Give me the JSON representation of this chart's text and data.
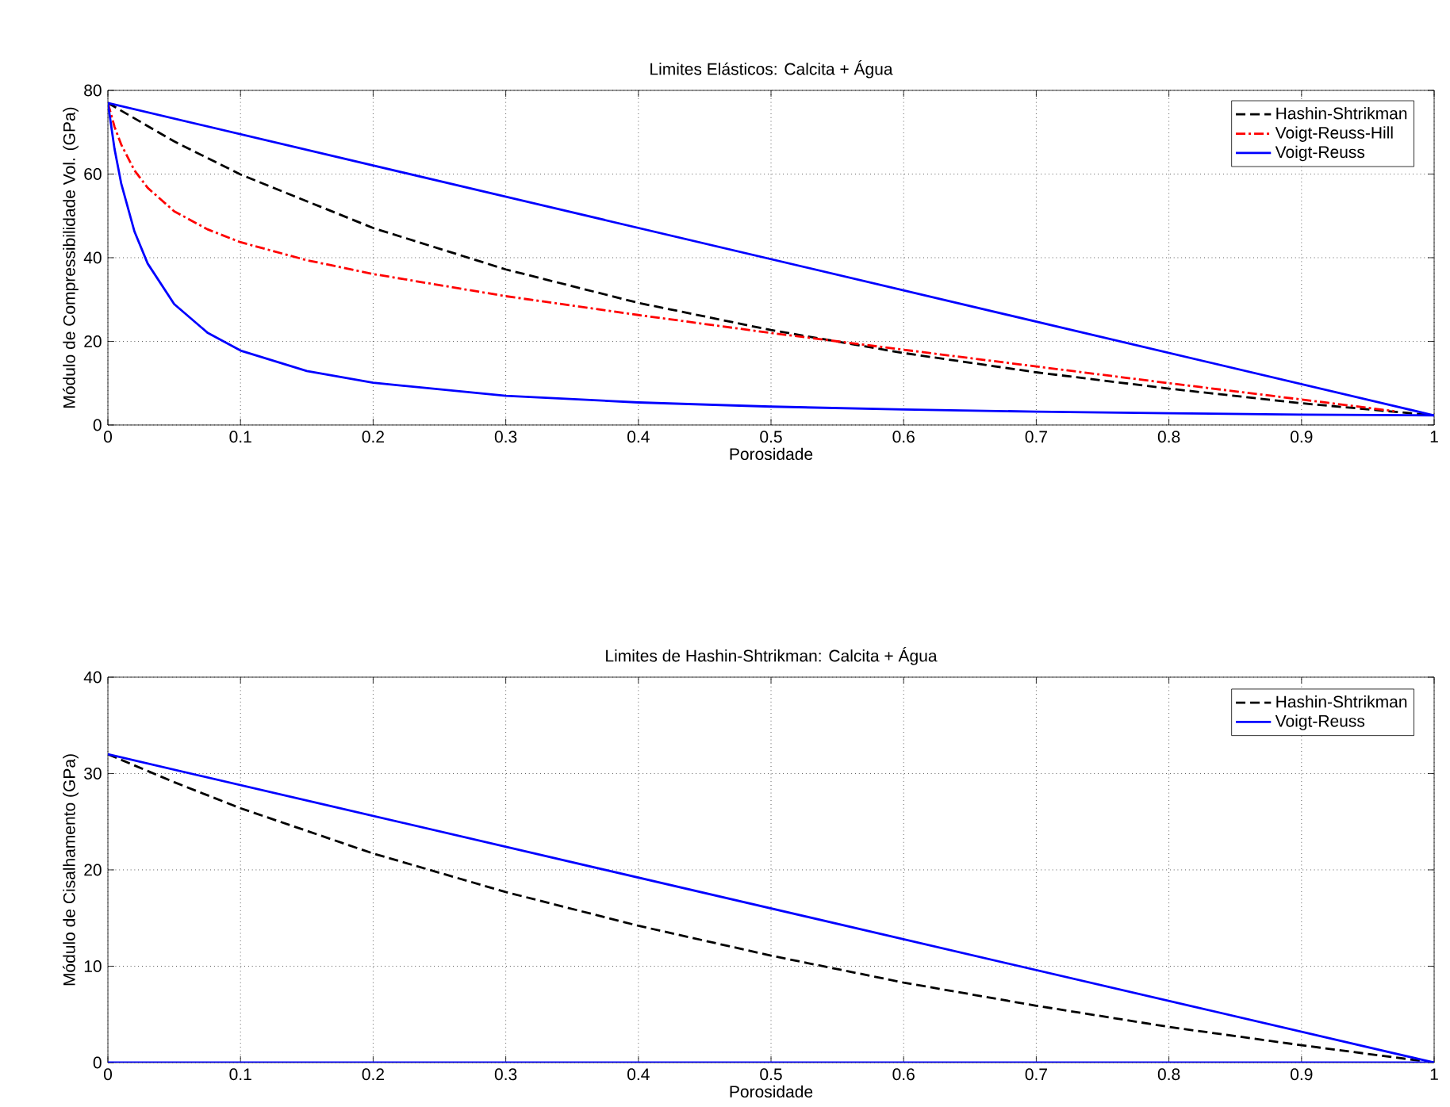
{
  "chart_data": [
    {
      "type": "line",
      "title": "Limites Elásticos: Calcita + Água",
      "xlabel": "Porosidade",
      "ylabel": "Módulo de Compressibilidade Vol. (GPa)",
      "xlim": [
        0,
        1
      ],
      "ylim": [
        0,
        80
      ],
      "xticks": [
        0,
        0.1,
        0.2,
        0.3,
        0.4,
        0.5,
        0.6,
        0.7,
        0.8,
        0.9,
        1
      ],
      "yticks": [
        0,
        20,
        40,
        60,
        80
      ],
      "grid": true,
      "legend": "top right",
      "series": [
        {
          "name": "Hashin-Shtrikman",
          "color": "#000000",
          "line_style": "dashed",
          "x": [
            0,
            0.05,
            0.1,
            0.2,
            0.3,
            0.4,
            0.5,
            0.6,
            0.7,
            0.8,
            0.9,
            1
          ],
          "values": [
            77,
            67.8,
            59.9,
            47.1,
            37.2,
            29.2,
            22.7,
            17.2,
            12.6,
            8.7,
            5.2,
            2.3
          ]
        },
        {
          "name": "Voigt-Reuss-Hill",
          "color": "#ff0000",
          "line_style": "dashdot",
          "x": [
            0,
            0.005,
            0.01,
            0.02,
            0.03,
            0.05,
            0.075,
            0.1,
            0.15,
            0.2,
            0.3,
            0.4,
            0.5,
            0.6,
            0.7,
            0.8,
            0.9,
            0.97
          ],
          "values": [
            77,
            71.3,
            67.1,
            60.9,
            56.7,
            51.1,
            46.8,
            43.7,
            39.4,
            36.1,
            30.8,
            26.3,
            22.0,
            18.0,
            14.0,
            10.0,
            6.1,
            3.3
          ]
        },
        {
          "name": "Voigt-Reuss",
          "color": "#0000ff",
          "line_style": "solid",
          "x": [
            0,
            1
          ],
          "values": [
            77,
            2.3
          ]
        },
        {
          "color": "#0000ff",
          "line_style": "solid",
          "x": [
            0,
            0.005,
            0.01,
            0.02,
            0.03,
            0.05,
            0.075,
            0.1,
            0.15,
            0.2,
            0.3,
            0.4,
            0.5,
            0.6,
            0.7,
            0.8,
            0.9,
            1
          ],
          "values": [
            77,
            66.0,
            57.8,
            46.3,
            38.6,
            28.9,
            22.1,
            17.8,
            12.9,
            10.1,
            7.0,
            5.4,
            4.4,
            3.7,
            3.2,
            2.8,
            2.5,
            2.3
          ]
        }
      ]
    },
    {
      "type": "line",
      "title": "Limites de Hashin-Shtrikman: Calcita + Água",
      "xlabel": "Porosidade",
      "ylabel": "Módulo de Cisalhamento (GPa)",
      "xlim": [
        0,
        1
      ],
      "ylim": [
        0,
        40
      ],
      "xticks": [
        0,
        0.1,
        0.2,
        0.3,
        0.4,
        0.5,
        0.6,
        0.7,
        0.8,
        0.9,
        1
      ],
      "yticks": [
        0,
        10,
        20,
        30,
        40
      ],
      "grid": true,
      "legend": "top right",
      "series": [
        {
          "name": "Hashin-Shtrikman",
          "color": "#000000",
          "line_style": "dashed",
          "x": [
            0,
            0.05,
            0.1,
            0.2,
            0.3,
            0.4,
            0.5,
            0.6,
            0.7,
            0.8,
            0.9,
            1
          ],
          "values": [
            32,
            29.1,
            26.4,
            21.7,
            17.7,
            14.2,
            11.1,
            8.3,
            5.9,
            3.7,
            1.8,
            0
          ]
        },
        {
          "name": "Voigt-Reuss",
          "color": "#0000ff",
          "line_style": "solid",
          "x": [
            0,
            1
          ],
          "values": [
            32,
            0
          ]
        },
        {
          "color": "#0000ff",
          "line_style": "solid",
          "x": [
            0,
            1
          ],
          "values": [
            0,
            0
          ]
        }
      ]
    }
  ]
}
